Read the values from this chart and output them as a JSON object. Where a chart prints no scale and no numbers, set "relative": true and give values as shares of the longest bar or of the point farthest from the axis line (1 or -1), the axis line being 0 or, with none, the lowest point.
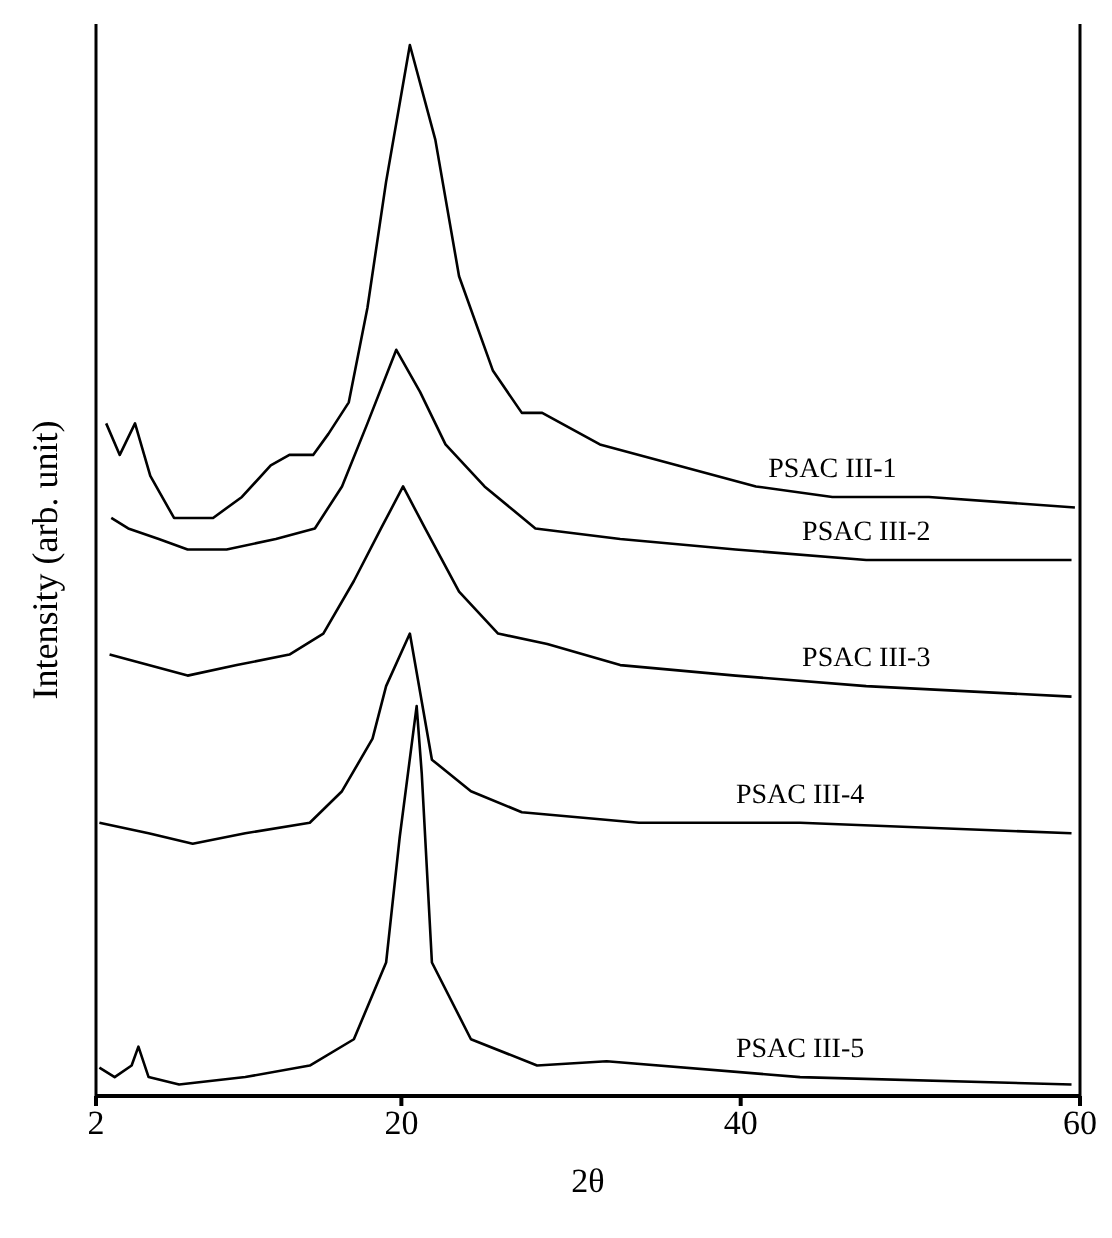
{
  "chart_data": {
    "type": "line",
    "relative": true,
    "xlabel": "2θ",
    "ylabel": "Intensity (arb. unit)",
    "xlim": [
      2,
      60
    ],
    "xticks": [
      2,
      20,
      40,
      60
    ],
    "marker": "none",
    "line_style": "solid",
    "series": [
      {
        "name": "PSAC III-1",
        "color": "#000000",
        "x": [
          2.6,
          3.4,
          4.3,
          5.2,
          6.6,
          8.9,
          10.6,
          12.3,
          13.4,
          14.8,
          15.7,
          16.9,
          18,
          19.1,
          20.5,
          22,
          23.4,
          25.4,
          27.1,
          28.3,
          31.7,
          36.3,
          40.9,
          45.4,
          51.1,
          59.7
        ],
        "values": [
          0.64,
          0.61,
          0.64,
          0.59,
          0.55,
          0.55,
          0.57,
          0.6,
          0.61,
          0.61,
          0.63,
          0.66,
          0.75,
          0.87,
          1,
          0.91,
          0.78,
          0.69,
          0.65,
          0.65,
          0.62,
          0.6,
          0.58,
          0.57,
          0.57,
          0.56
        ]
      },
      {
        "name": "PSAC III-2",
        "color": "#000000",
        "x": [
          2.9,
          3.9,
          5.7,
          7.4,
          9.7,
          12.6,
          14.9,
          16.5,
          18,
          19.7,
          21.1,
          22.6,
          24.9,
          27.9,
          32.9,
          39.7,
          47.4,
          59.5
        ],
        "values": [
          0.55,
          0.54,
          0.53,
          0.52,
          0.52,
          0.53,
          0.54,
          0.58,
          0.64,
          0.71,
          0.67,
          0.62,
          0.58,
          0.54,
          0.53,
          0.52,
          0.51,
          0.51
        ]
      },
      {
        "name": "PSAC III-3",
        "color": "#000000",
        "x": [
          2.8,
          5.1,
          7.4,
          10.3,
          13.4,
          15.4,
          17.2,
          18.8,
          20.1,
          21.4,
          23.4,
          25.7,
          28.6,
          32.9,
          39.7,
          47.4,
          59.5
        ],
        "values": [
          0.42,
          0.41,
          0.4,
          0.41,
          0.42,
          0.44,
          0.49,
          0.54,
          0.58,
          0.54,
          0.48,
          0.44,
          0.43,
          0.41,
          0.4,
          0.39,
          0.38
        ]
      },
      {
        "name": "PSAC III-4",
        "color": "#000000",
        "x": [
          2.2,
          5.1,
          7.7,
          10.8,
          14.6,
          16.5,
          18.3,
          19.1,
          20.5,
          21.8,
          24.1,
          27.1,
          34,
          43.5,
          59.5
        ],
        "values": [
          0.26,
          0.25,
          0.24,
          0.25,
          0.26,
          0.29,
          0.34,
          0.39,
          0.44,
          0.32,
          0.29,
          0.27,
          0.26,
          0.26,
          0.25
        ]
      },
      {
        "name": "PSAC III-5",
        "color": "#000000",
        "x": [
          2.2,
          3.1,
          4.1,
          4.5,
          5.1,
          6.9,
          10.8,
          14.6,
          17.2,
          19.1,
          19.9,
          20.9,
          21.2,
          21.8,
          24.1,
          28,
          32.1,
          43.5,
          59.5
        ],
        "values": [
          0.027,
          0.018,
          0.029,
          0.047,
          0.018,
          0.011,
          0.018,
          0.029,
          0.054,
          0.127,
          0.246,
          0.371,
          0.307,
          0.127,
          0.054,
          0.029,
          0.033,
          0.018,
          0.011
        ]
      }
    ]
  }
}
